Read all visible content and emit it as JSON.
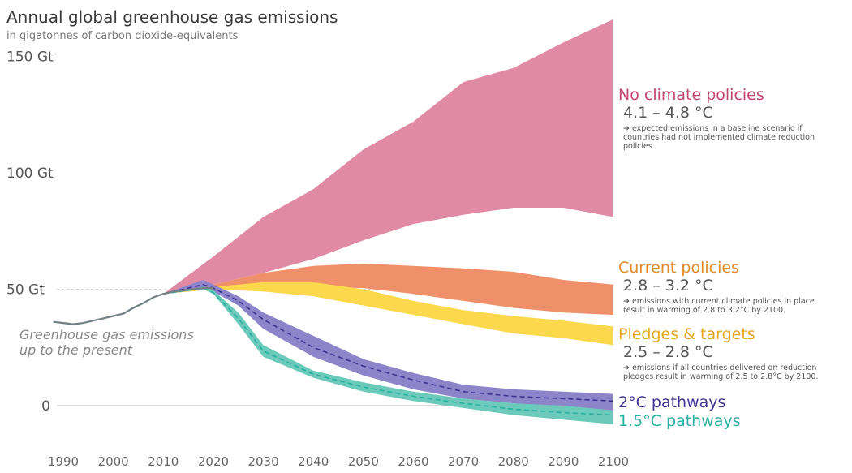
{
  "header": {
    "title": "Annual global greenhouse gas emissions",
    "subtitle": "in gigatonnes of carbon dioxide-equivalents"
  },
  "history_note": {
    "line1": "Greenhouse gas emissions",
    "line2": "up to the present"
  },
  "scenarios": {
    "no_policy": {
      "name": "No climate policies",
      "temp": "4.1 – 4.8 °C",
      "desc": "➔ expected emissions in a baseline scenario if countries had not implemented climate reduction policies.",
      "color": "#e08aa5",
      "label_color": "#c0466e"
    },
    "current": {
      "name": "Current policies",
      "temp": "2.8 – 3.2 °C",
      "desc": "➔ emissions with current climate policies in place result in warming of 2.8 to 3.2°C by 2100.",
      "color": "#f0906a",
      "label_color": "#e08a2a"
    },
    "pledges": {
      "name": "Pledges & targets",
      "temp": "2.5 – 2.8 °C",
      "desc": "➔ emissions if all countries delivered on reduction pledges result in warming of 2.5 to 2.8°C by 2100.",
      "color": "#fcd94c",
      "label_color": "#e6a61e"
    },
    "two_c": {
      "name": "2°C pathways",
      "color": "#8d84c9",
      "label_color": "#3e3590"
    },
    "one_five_c": {
      "name": "1.5°C pathways",
      "color": "#6ccabb",
      "label_color": "#26b0a0"
    }
  },
  "chart_data": {
    "type": "area",
    "x_axis": {
      "min": 1990,
      "max": 2100,
      "ticks": [
        "1990",
        "2000",
        "2010",
        "2020",
        "2030",
        "2040",
        "2050",
        "2060",
        "2070",
        "2080",
        "2090",
        "2100"
      ]
    },
    "y_axis": {
      "min": 0,
      "max": 165,
      "ticks": [
        {
          "value": 0,
          "label": "0"
        },
        {
          "value": 50,
          "label": "50 Gt"
        },
        {
          "value": 100,
          "label": "100 Gt"
        },
        {
          "value": 150,
          "label": "150 Gt"
        }
      ]
    },
    "history": {
      "color": "#708083",
      "x": [
        1988,
        1990,
        1992,
        1994,
        1996,
        1998,
        2000,
        2002,
        2004,
        2006,
        2008,
        2010,
        2012,
        2014,
        2016,
        2018,
        2020
      ],
      "y": [
        36,
        35.5,
        35,
        35.5,
        36.5,
        37.5,
        38.5,
        39.5,
        42,
        44,
        46.5,
        48,
        49,
        49.5,
        50,
        50.5,
        50.5
      ]
    },
    "bands": [
      {
        "key": "no_policy",
        "x": [
          2010,
          2020,
          2030,
          2040,
          2050,
          2060,
          2070,
          2080,
          2090,
          2100
        ],
        "upper": [
          48,
          64,
          81,
          93,
          110,
          122,
          139,
          145,
          156,
          166
        ],
        "lower": [
          48,
          52,
          57,
          63,
          71,
          78,
          82,
          85,
          85,
          81
        ]
      },
      {
        "key": "current",
        "x": [
          2010,
          2020,
          2030,
          2040,
          2050,
          2060,
          2070,
          2080,
          2090,
          2100
        ],
        "upper": [
          48,
          52,
          57,
          60,
          61,
          60,
          59,
          57.5,
          54,
          52
        ],
        "lower": [
          48,
          50,
          51,
          51,
          50.5,
          48,
          45,
          42,
          40,
          39
        ]
      },
      {
        "key": "pledges",
        "x": [
          2010,
          2020,
          2030,
          2040,
          2050,
          2060,
          2070,
          2080,
          2090,
          2100
        ],
        "upper": [
          48,
          51,
          53,
          53,
          50,
          45,
          41,
          38.5,
          36.5,
          34
        ],
        "lower": [
          48,
          50,
          49,
          47,
          43,
          39,
          35,
          31,
          29,
          26
        ]
      },
      {
        "key": "two_c",
        "x": [
          2010,
          2018,
          2020,
          2025,
          2030,
          2040,
          2050,
          2060,
          2070,
          2080,
          2090,
          2100
        ],
        "upper": [
          48,
          54,
          52,
          47,
          40,
          30,
          20,
          14,
          9,
          7,
          6,
          5
        ],
        "lower": [
          48,
          50,
          49,
          43,
          33,
          21,
          13,
          7,
          3,
          1,
          -1,
          -2
        ],
        "median": [
          48,
          52,
          50.5,
          45,
          37,
          25,
          17,
          11,
          6,
          4,
          3,
          2
        ]
      },
      {
        "key": "one_five_c",
        "x": [
          2010,
          2018,
          2020,
          2025,
          2030,
          2040,
          2050,
          2060,
          2070,
          2080,
          2090,
          2100
        ],
        "upper": [
          48,
          51,
          49.5,
          40,
          26,
          15,
          10,
          6,
          3,
          1,
          0,
          -2
        ],
        "lower": [
          48,
          50,
          48,
          35,
          21,
          12,
          6,
          2,
          -1,
          -4,
          -6,
          -8
        ],
        "median": [
          48,
          50.5,
          48.5,
          37.5,
          23.5,
          13.5,
          8,
          4,
          1,
          -1.5,
          -3,
          -4
        ]
      }
    ]
  }
}
